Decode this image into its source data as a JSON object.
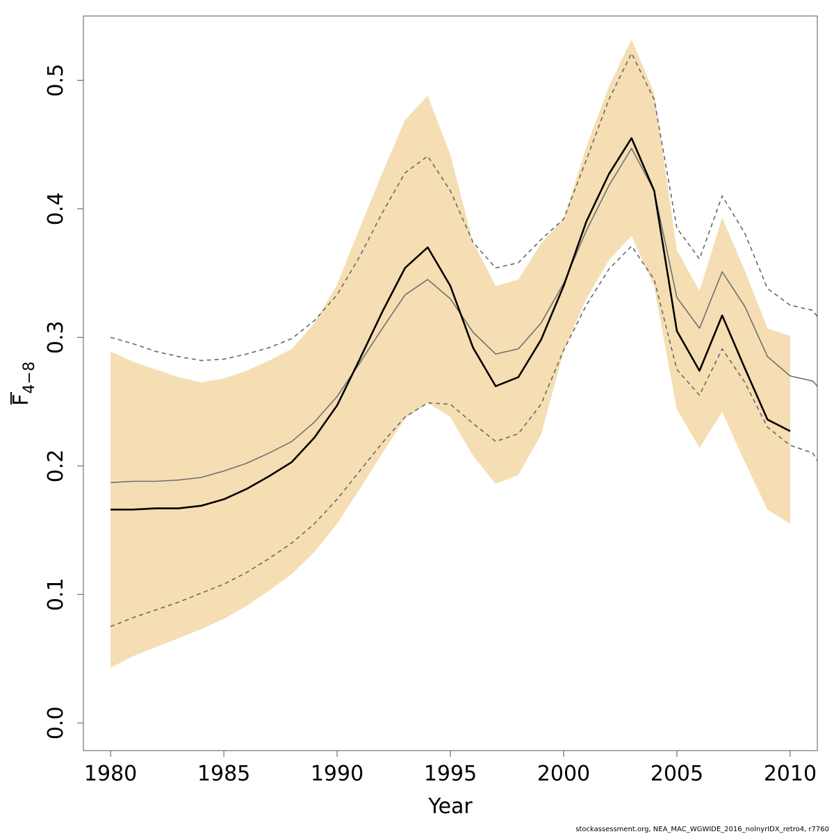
{
  "chart_data": {
    "type": "line",
    "title": "",
    "xlabel": "Year",
    "ylabel_main": "F",
    "ylabel_sub": "4−8",
    "xlim": [
      1978.8,
      2011.2
    ],
    "ylim": [
      -0.0215,
      0.55
    ],
    "x_ticks": [
      1980,
      1985,
      1990,
      1995,
      2000,
      2005,
      2010
    ],
    "x_tick_labels": [
      "1980",
      "1985",
      "1990",
      "1995",
      "2000",
      "2005",
      "2010"
    ],
    "y_ticks": [
      0.0,
      0.1,
      0.2,
      0.3,
      0.4,
      0.5
    ],
    "y_tick_labels": [
      "0.0",
      "0.1",
      "0.2",
      "0.3",
      "0.4",
      "0.5"
    ],
    "grid": false,
    "series": [
      {
        "name": "confidence band",
        "style": "band",
        "color": "#f5deb3",
        "x": [
          1980,
          1981,
          1982,
          1983,
          1984,
          1985,
          1986,
          1987,
          1988,
          1989,
          1990,
          1991,
          1992,
          1993,
          1994,
          1995,
          1996,
          1997,
          1998,
          1999,
          2000,
          2001,
          2002,
          2003,
          2004,
          2005,
          2006,
          2007,
          2008,
          2009,
          2010
        ],
        "upper": [
          0.289,
          0.281,
          0.275,
          0.269,
          0.265,
          0.268,
          0.274,
          0.282,
          0.291,
          0.311,
          0.341,
          0.385,
          0.428,
          0.469,
          0.488,
          0.442,
          0.374,
          0.34,
          0.345,
          0.373,
          0.392,
          0.448,
          0.495,
          0.532,
          0.49,
          0.368,
          0.336,
          0.393,
          0.352,
          0.307,
          0.301
        ],
        "lower": [
          0.043,
          0.052,
          0.059,
          0.066,
          0.073,
          0.081,
          0.091,
          0.103,
          0.116,
          0.133,
          0.155,
          0.182,
          0.21,
          0.237,
          0.249,
          0.238,
          0.208,
          0.186,
          0.193,
          0.224,
          0.289,
          0.33,
          0.36,
          0.379,
          0.339,
          0.244,
          0.214,
          0.242,
          0.203,
          0.166,
          0.155
        ]
      },
      {
        "name": "upper retro bound",
        "style": "dashed",
        "color": "#666666",
        "x": [
          1980,
          1981,
          1982,
          1983,
          1984,
          1985,
          1986,
          1987,
          1988,
          1989,
          1990,
          1991,
          1992,
          1993,
          1994,
          1995,
          1996,
          1997,
          1998,
          1999,
          2000,
          2001,
          2002,
          2003,
          2004,
          2005,
          2006,
          2007,
          2008,
          2009,
          2010,
          2011,
          2011.2
        ],
        "values": [
          0.3,
          0.295,
          0.289,
          0.285,
          0.282,
          0.283,
          0.287,
          0.292,
          0.299,
          0.313,
          0.333,
          0.363,
          0.397,
          0.428,
          0.441,
          0.414,
          0.374,
          0.354,
          0.358,
          0.376,
          0.392,
          0.438,
          0.485,
          0.521,
          0.485,
          0.385,
          0.361,
          0.41,
          0.381,
          0.338,
          0.325,
          0.321,
          0.316
        ]
      },
      {
        "name": "lower retro bound",
        "style": "dashed",
        "color": "#666666",
        "x": [
          1980,
          1981,
          1982,
          1983,
          1984,
          1985,
          1986,
          1987,
          1988,
          1989,
          1990,
          1991,
          1992,
          1993,
          1994,
          1995,
          1996,
          1997,
          1998,
          1999,
          2000,
          2001,
          2002,
          2003,
          2004,
          2005,
          2006,
          2007,
          2008,
          2009,
          2010,
          2011,
          2011.2
        ],
        "values": [
          0.075,
          0.082,
          0.088,
          0.094,
          0.101,
          0.108,
          0.117,
          0.128,
          0.14,
          0.155,
          0.174,
          0.196,
          0.218,
          0.238,
          0.249,
          0.248,
          0.233,
          0.219,
          0.225,
          0.248,
          0.29,
          0.325,
          0.353,
          0.371,
          0.345,
          0.275,
          0.255,
          0.291,
          0.265,
          0.23,
          0.216,
          0.21,
          0.204
        ]
      },
      {
        "name": "retro peel (grey)",
        "style": "solid",
        "color": "#707070",
        "x": [
          1980,
          1981,
          1982,
          1983,
          1984,
          1985,
          1986,
          1987,
          1988,
          1989,
          1990,
          1991,
          1992,
          1993,
          1994,
          1995,
          1996,
          1997,
          1998,
          1999,
          2000,
          2001,
          2002,
          2003,
          2004,
          2005,
          2006,
          2007,
          2008,
          2009,
          2010,
          2011,
          2011.2
        ],
        "values": [
          0.187,
          0.188,
          0.188,
          0.189,
          0.191,
          0.196,
          0.202,
          0.21,
          0.219,
          0.234,
          0.254,
          0.28,
          0.307,
          0.333,
          0.345,
          0.33,
          0.304,
          0.287,
          0.291,
          0.311,
          0.342,
          0.383,
          0.418,
          0.447,
          0.414,
          0.331,
          0.307,
          0.351,
          0.324,
          0.285,
          0.27,
          0.266,
          0.262
        ]
      },
      {
        "name": "estimate",
        "style": "solid-bold",
        "color": "#000000",
        "x": [
          1980,
          1981,
          1982,
          1983,
          1984,
          1985,
          1986,
          1987,
          1988,
          1989,
          1990,
          1991,
          1992,
          1993,
          1994,
          1995,
          1996,
          1997,
          1998,
          1999,
          2000,
          2001,
          2002,
          2003,
          2004,
          2005,
          2006,
          2007,
          2008,
          2009,
          2010
        ],
        "values": [
          0.166,
          0.166,
          0.167,
          0.167,
          0.169,
          0.174,
          0.182,
          0.192,
          0.203,
          0.222,
          0.247,
          0.283,
          0.32,
          0.354,
          0.37,
          0.34,
          0.292,
          0.262,
          0.269,
          0.298,
          0.34,
          0.39,
          0.427,
          0.455,
          0.414,
          0.305,
          0.274,
          0.317,
          0.276,
          0.236,
          0.227
        ]
      }
    ]
  },
  "footer": {
    "note": "stockassessment.org, NEA_MAC_WGWIDE_2016_nolnyrIDX_retro4, r7760"
  }
}
